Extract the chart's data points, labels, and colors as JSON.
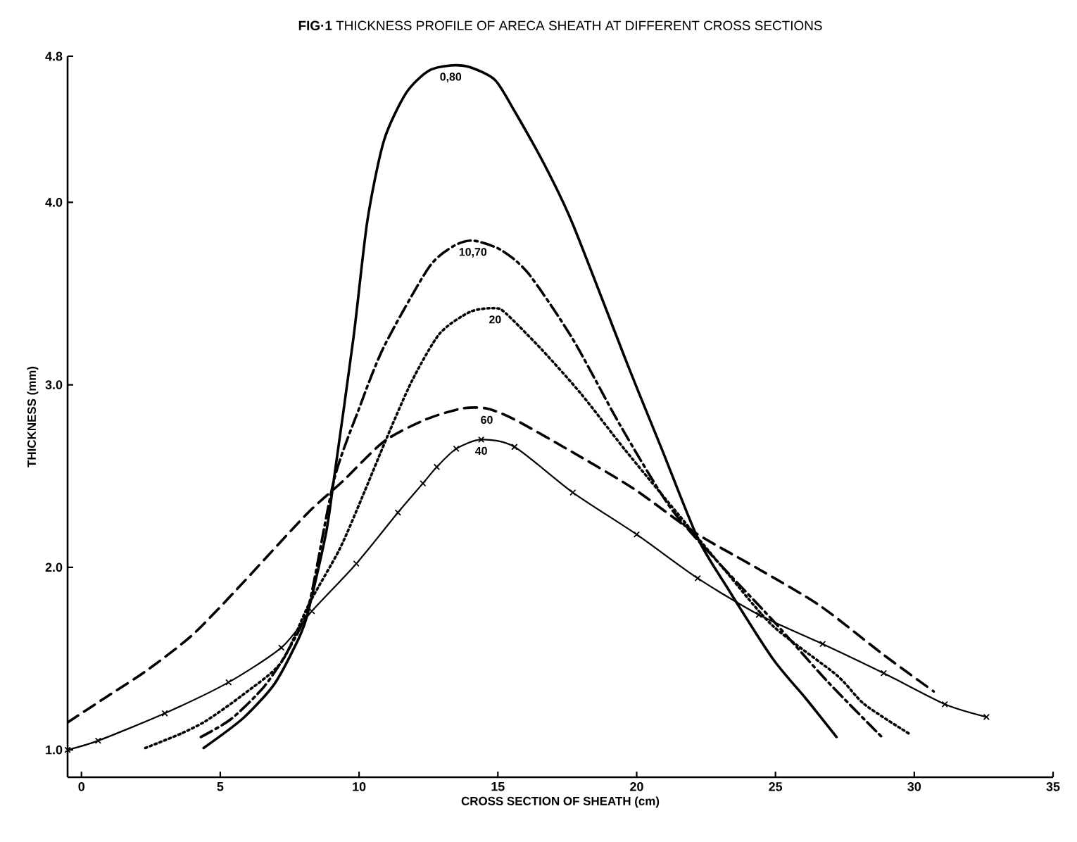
{
  "chart_data": {
    "type": "line",
    "title": "**FIG·1** THICKNESS PROFILE OF ARECA SHEATH AT DIFFERENT CROSS SECTIONS",
    "xlabel": "CROSS SECTION OF SHEATH (cm)",
    "ylabel": "THICKNESS (mm)",
    "xlim": [
      -0.5,
      35
    ],
    "ylim": [
      0.85,
      4.8
    ],
    "xticks": [
      0,
      5,
      10,
      15,
      20,
      25,
      30,
      35
    ],
    "yticks": [
      {
        "value": 1,
        "label": "1.0"
      },
      {
        "value": 2,
        "label": "2.0"
      },
      {
        "value": 3,
        "label": "3.0"
      },
      {
        "value": 4,
        "label": "4.0"
      },
      {
        "value": 4.8,
        "label": "4.8"
      }
    ],
    "series": [
      {
        "name": "0,80",
        "color": "#000000",
        "line_style": "solid",
        "x": [
          4.4,
          5.8,
          6.9,
          7.6,
          8.1,
          8.8,
          9.1,
          9.8,
          10.3,
          10.9,
          11.7,
          12.5,
          13.3,
          14.0,
          14.9,
          15.6,
          16.7,
          17.7,
          19.7,
          20.9,
          22.2,
          23.3,
          24.9,
          26.1,
          27.2
        ],
        "values": [
          1.01,
          1.17,
          1.35,
          1.54,
          1.72,
          2.18,
          2.49,
          3.26,
          3.9,
          4.34,
          4.6,
          4.72,
          4.75,
          4.74,
          4.67,
          4.5,
          4.2,
          3.88,
          3.1,
          2.65,
          2.16,
          1.88,
          1.5,
          1.28,
          1.07
        ]
      },
      {
        "name": "10,70",
        "color": "#000000",
        "line_style": "dashdot",
        "x": [
          4.3,
          5.4,
          6.6,
          7.5,
          8.2,
          9.1,
          10.0,
          10.9,
          12.5,
          13.4,
          14.1,
          15.1,
          16.1,
          17.7,
          19.4,
          21.2,
          22.8,
          24.9,
          26.9,
          28.9
        ],
        "values": [
          1.07,
          1.17,
          1.35,
          1.56,
          1.8,
          2.48,
          2.87,
          3.21,
          3.64,
          3.76,
          3.79,
          3.74,
          3.61,
          3.25,
          2.78,
          2.33,
          2.05,
          1.71,
          1.37,
          1.06
        ]
      },
      {
        "name": "20",
        "color": "#000000",
        "line_style": "dotted",
        "x": [
          2.3,
          3.6,
          4.5,
          5.8,
          7.2,
          8.2,
          9.3,
          10.1,
          11.0,
          11.9,
          12.9,
          14.0,
          14.9,
          15.3,
          16.6,
          18.0,
          19.6,
          21.5,
          23.2,
          24.9,
          27.2,
          28.2,
          29.8
        ],
        "values": [
          1.01,
          1.09,
          1.16,
          1.3,
          1.48,
          1.8,
          2.1,
          2.38,
          2.71,
          3.02,
          3.28,
          3.4,
          3.42,
          3.39,
          3.19,
          2.95,
          2.64,
          2.29,
          1.98,
          1.68,
          1.41,
          1.25,
          1.09
        ]
      },
      {
        "name": "60",
        "color": "#000000",
        "line_style": "dashed",
        "x": [
          -0.5,
          0.9,
          2.4,
          4.0,
          5.6,
          8.1,
          9.4,
          10.9,
          12.4,
          13.7,
          14.6,
          15.6,
          17.7,
          19.9,
          22.1,
          24.4,
          26.6,
          28.9,
          30.7
        ],
        "values": [
          1.15,
          1.29,
          1.44,
          1.63,
          1.88,
          2.29,
          2.47,
          2.69,
          2.81,
          2.87,
          2.87,
          2.81,
          2.63,
          2.43,
          2.19,
          1.99,
          1.79,
          1.52,
          1.32
        ]
      },
      {
        "name": "40",
        "color": "#000000",
        "line_style": "solid",
        "marker": "cross",
        "x": [
          -0.5,
          0.6,
          3.0,
          5.3,
          7.2,
          8.3,
          9.9,
          11.4,
          12.3,
          12.8,
          13.5,
          14.4,
          15.6,
          17.7,
          20.0,
          22.2,
          24.4,
          26.7,
          28.9,
          31.1,
          32.6
        ],
        "values": [
          1.0,
          1.05,
          1.2,
          1.37,
          1.56,
          1.76,
          2.02,
          2.3,
          2.46,
          2.55,
          2.65,
          2.7,
          2.66,
          2.41,
          2.18,
          1.94,
          1.74,
          1.58,
          1.42,
          1.25,
          1.18
        ]
      }
    ]
  }
}
